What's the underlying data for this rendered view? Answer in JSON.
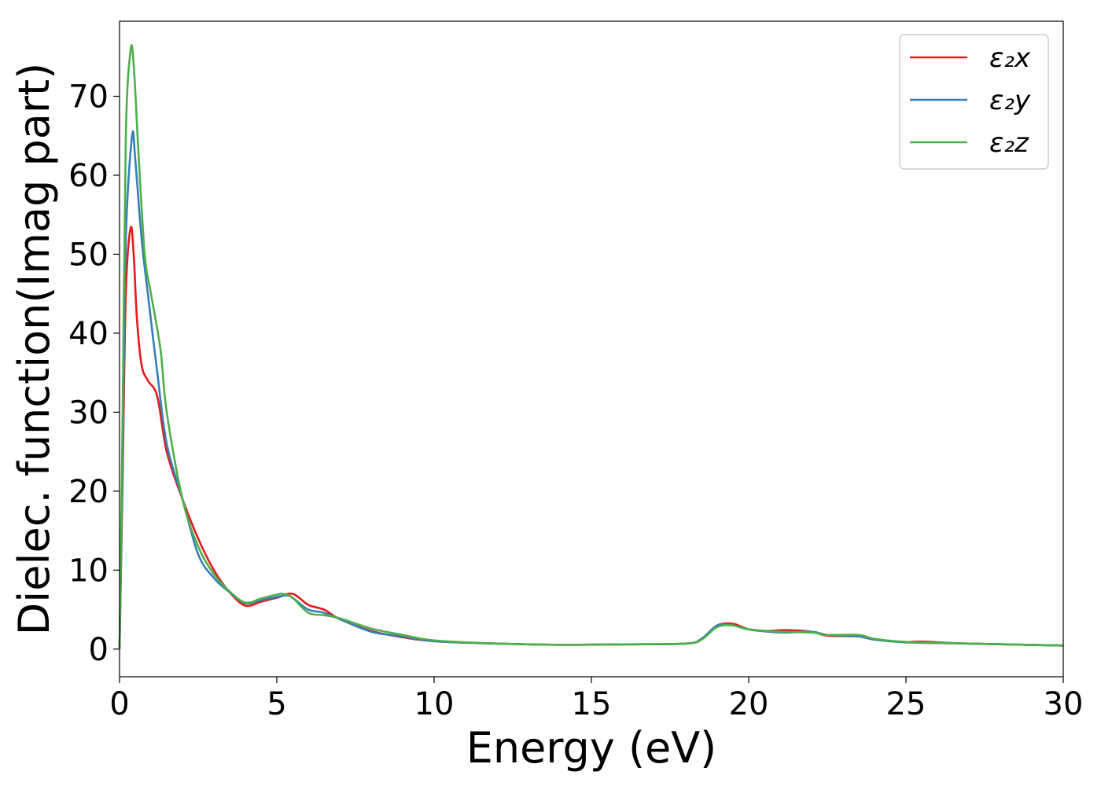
{
  "chart_data": {
    "type": "line",
    "xlabel": "Energy (eV)",
    "ylabel": "Dielec. function(Imag part)",
    "xlim": [
      0,
      30
    ],
    "ylim": [
      -3.5,
      79.5
    ],
    "xticks": [
      0,
      5,
      10,
      15,
      20,
      25,
      30
    ],
    "yticks": [
      0,
      10,
      20,
      30,
      40,
      50,
      60,
      70
    ],
    "legend_position": "top-right",
    "grid": false,
    "series": [
      {
        "name": "ε₂x",
        "color": "#e41a1c",
        "points": [
          [
            0,
            0
          ],
          [
            0.1,
            22
          ],
          [
            0.2,
            45
          ],
          [
            0.35,
            53.3
          ],
          [
            0.45,
            50
          ],
          [
            0.55,
            42
          ],
          [
            0.7,
            36
          ],
          [
            0.9,
            34
          ],
          [
            1.2,
            32
          ],
          [
            1.5,
            25
          ],
          [
            2.0,
            19
          ],
          [
            2.5,
            14
          ],
          [
            3.0,
            10
          ],
          [
            3.5,
            7.2
          ],
          [
            4.0,
            5.5
          ],
          [
            4.5,
            6.0
          ],
          [
            5.0,
            6.5
          ],
          [
            5.5,
            7.0
          ],
          [
            6.0,
            5.6
          ],
          [
            6.5,
            5.0
          ],
          [
            7.0,
            3.8
          ],
          [
            8.0,
            2.3
          ],
          [
            9.0,
            1.5
          ],
          [
            10,
            1.0
          ],
          [
            12,
            0.7
          ],
          [
            14,
            0.55
          ],
          [
            16,
            0.6
          ],
          [
            18,
            0.7
          ],
          [
            18.5,
            1.3
          ],
          [
            19.0,
            3.0
          ],
          [
            19.5,
            3.2
          ],
          [
            20.0,
            2.5
          ],
          [
            20.5,
            2.3
          ],
          [
            21.2,
            2.4
          ],
          [
            22,
            2.2
          ],
          [
            22.5,
            1.7
          ],
          [
            23.5,
            1.6
          ],
          [
            24,
            1.2
          ],
          [
            25,
            0.9
          ],
          [
            25.5,
            0.95
          ],
          [
            27,
            0.7
          ],
          [
            30,
            0.45
          ]
        ]
      },
      {
        "name": "ε₂y",
        "color": "#377eb8",
        "points": [
          [
            0,
            0
          ],
          [
            0.1,
            25
          ],
          [
            0.2,
            52
          ],
          [
            0.4,
            65
          ],
          [
            0.5,
            62
          ],
          [
            0.7,
            52
          ],
          [
            0.9,
            45
          ],
          [
            1.2,
            35
          ],
          [
            1.5,
            26
          ],
          [
            2.0,
            19
          ],
          [
            2.5,
            12
          ],
          [
            3.0,
            9.0
          ],
          [
            3.5,
            7.2
          ],
          [
            4.0,
            5.8
          ],
          [
            4.5,
            6.2
          ],
          [
            5.0,
            6.6
          ],
          [
            5.3,
            6.8
          ],
          [
            5.5,
            6.5
          ],
          [
            6.0,
            5.0
          ],
          [
            6.5,
            4.6
          ],
          [
            7.0,
            3.8
          ],
          [
            8.0,
            2.2
          ],
          [
            9.0,
            1.6
          ],
          [
            10,
            1.0
          ],
          [
            12,
            0.7
          ],
          [
            14,
            0.55
          ],
          [
            16,
            0.6
          ],
          [
            18,
            0.7
          ],
          [
            18.5,
            1.3
          ],
          [
            19.0,
            3.0
          ],
          [
            19.5,
            3.0
          ],
          [
            20.0,
            2.5
          ],
          [
            21,
            2.1
          ],
          [
            22,
            2.2
          ],
          [
            22.5,
            1.8
          ],
          [
            23.5,
            1.6
          ],
          [
            24,
            1.2
          ],
          [
            25,
            0.85
          ],
          [
            27,
            0.7
          ],
          [
            30,
            0.45
          ]
        ]
      },
      {
        "name": "ε₂z",
        "color": "#4daf4a",
        "points": [
          [
            0,
            0
          ],
          [
            0.1,
            30
          ],
          [
            0.2,
            65
          ],
          [
            0.35,
            75.8
          ],
          [
            0.45,
            74
          ],
          [
            0.6,
            63
          ],
          [
            0.8,
            50
          ],
          [
            1.0,
            45
          ],
          [
            1.3,
            38
          ],
          [
            1.5,
            30
          ],
          [
            2.0,
            19
          ],
          [
            2.5,
            13
          ],
          [
            3.0,
            9.5
          ],
          [
            3.5,
            7.3
          ],
          [
            4.0,
            5.9
          ],
          [
            4.5,
            6.4
          ],
          [
            5.0,
            6.9
          ],
          [
            5.2,
            7.0
          ],
          [
            5.5,
            6.5
          ],
          [
            6.0,
            4.6
          ],
          [
            6.5,
            4.3
          ],
          [
            7.0,
            3.9
          ],
          [
            8.0,
            2.6
          ],
          [
            9.0,
            1.8
          ],
          [
            10,
            1.1
          ],
          [
            12,
            0.7
          ],
          [
            14,
            0.55
          ],
          [
            16,
            0.6
          ],
          [
            18,
            0.7
          ],
          [
            18.5,
            1.2
          ],
          [
            19.0,
            2.8
          ],
          [
            19.5,
            3.0
          ],
          [
            20.0,
            2.5
          ],
          [
            21,
            2.2
          ],
          [
            22,
            2.1
          ],
          [
            22.5,
            1.8
          ],
          [
            23.5,
            1.8
          ],
          [
            24,
            1.3
          ],
          [
            25,
            0.9
          ],
          [
            27,
            0.7
          ],
          [
            30,
            0.45
          ]
        ]
      }
    ]
  }
}
